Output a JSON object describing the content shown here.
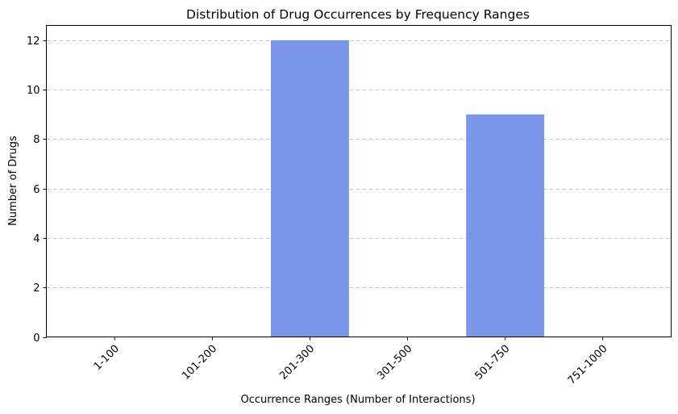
{
  "chart_data": {
    "type": "bar",
    "title": "Distribution of Drug Occurrences by Frequency Ranges",
    "xlabel": "Occurrence Ranges (Number of Interactions)",
    "ylabel": "Number of Drugs",
    "categories": [
      "1-100",
      "101-200",
      "201-300",
      "301-500",
      "501-750",
      "751-1000"
    ],
    "values": [
      0,
      0,
      12,
      0,
      9,
      0
    ],
    "ylim": [
      0,
      12.6
    ],
    "yticks": [
      0,
      2,
      4,
      6,
      8,
      10,
      12
    ],
    "grid": "y-dashed",
    "bar_color": "#7a96e8",
    "x_tick_rotation": "45deg"
  }
}
